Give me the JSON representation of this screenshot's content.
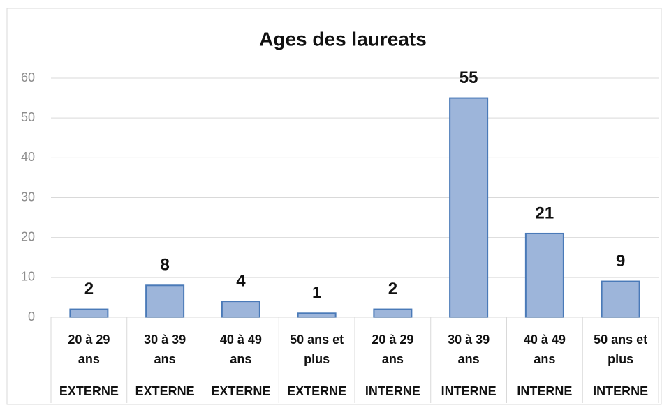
{
  "chart_data": {
    "type": "bar",
    "title": "Ages des laureats",
    "categories": [
      [
        "20 à 29",
        "ans"
      ],
      [
        "30 à 39",
        "ans"
      ],
      [
        "40 à 49",
        "ans"
      ],
      [
        "50 ans et",
        "plus"
      ],
      [
        "20 à 29",
        "ans"
      ],
      [
        "30 à 39",
        "ans"
      ],
      [
        "40 à 49",
        "ans"
      ],
      [
        "50 ans et",
        "plus"
      ]
    ],
    "category_groups": [
      "EXTERNE",
      "EXTERNE",
      "EXTERNE",
      "EXTERNE",
      "INTERNE",
      "INTERNE",
      "INTERNE",
      "INTERNE"
    ],
    "values": [
      2,
      8,
      4,
      1,
      2,
      55,
      21,
      9
    ],
    "color": "#9db5da",
    "edge_color": "#4a7ab8",
    "ylim": [
      0,
      60
    ],
    "yticks": [
      0,
      10,
      20,
      30,
      40,
      50,
      60
    ],
    "grid": true
  }
}
